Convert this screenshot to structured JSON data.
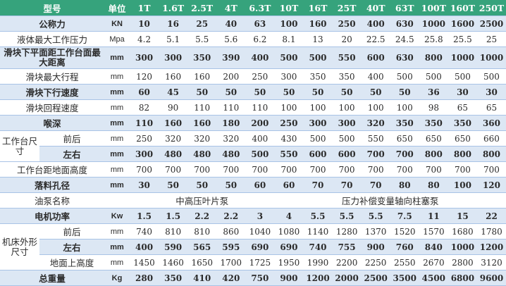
{
  "colors": {
    "header": "#36a37c",
    "row_alt": "#dce7f4",
    "border": "#a8c3e6"
  },
  "header": {
    "model": "型号",
    "unit": "单位",
    "models": [
      "1T",
      "1.6T",
      "2.5T",
      "4T",
      "6.3T",
      "10T",
      "16T",
      "25T",
      "40T",
      "63T",
      "100T",
      "160T",
      "250T"
    ]
  },
  "rows": [
    {
      "label": "公称力",
      "unit": "KN",
      "values": [
        "10",
        "16",
        "25",
        "40",
        "63",
        "100",
        "160",
        "250",
        "400",
        "630",
        "1000",
        "1600",
        "2500"
      ],
      "bg": "b",
      "bold": true
    },
    {
      "label": "液体最大工作压力",
      "unit": "Mpa",
      "values": [
        "4.2",
        "5.1",
        "5.5",
        "5.6",
        "6.2",
        "8.1",
        "13",
        "20",
        "22.5",
        "24.5",
        "25.8",
        "25.5",
        "25"
      ],
      "bg": "w"
    },
    {
      "label": "滑块下平面距工作台面最大距离",
      "unit": "mm",
      "values": [
        "300",
        "300",
        "350",
        "390",
        "400",
        "500",
        "500",
        "550",
        "600",
        "630",
        "800",
        "1000",
        "1000"
      ],
      "bg": "b",
      "bold": true,
      "tall": true
    },
    {
      "label": "滑块最大行程",
      "unit": "mm",
      "values": [
        "120",
        "160",
        "160",
        "200",
        "250",
        "300",
        "350",
        "350",
        "400",
        "500",
        "500",
        "500",
        "500"
      ],
      "bg": "w"
    },
    {
      "label": "滑块下行速度",
      "unit": "mm",
      "values": [
        "60",
        "45",
        "50",
        "50",
        "50",
        "50",
        "50",
        "50",
        "50",
        "50",
        "36",
        "30",
        "30"
      ],
      "bg": "b",
      "bold": true
    },
    {
      "label": "滑块回程速度",
      "unit": "mm",
      "values": [
        "82",
        "90",
        "110",
        "110",
        "110",
        "100",
        "100",
        "100",
        "100",
        "100",
        "98",
        "65",
        "65"
      ],
      "bg": "w"
    },
    {
      "label": "喉深",
      "unit": "mm",
      "values": [
        "110",
        "160",
        "160",
        "180",
        "200",
        "250",
        "300",
        "300",
        "320",
        "350",
        "350",
        "350",
        "360"
      ],
      "bg": "b",
      "bold": true
    },
    {
      "group": "工作台尺寸",
      "sub": "前后",
      "unit": "mm",
      "values": [
        "250",
        "320",
        "320",
        "320",
        "400",
        "430",
        "500",
        "500",
        "550",
        "650",
        "650",
        "650",
        "660"
      ],
      "bg": "w"
    },
    {
      "sub": "左右",
      "unit": "mm",
      "values": [
        "300",
        "480",
        "480",
        "480",
        "500",
        "550",
        "600",
        "600",
        "700",
        "700",
        "800",
        "800",
        "800"
      ],
      "bg": "b",
      "bold": true
    },
    {
      "label": "工作台距地面高度",
      "unit": "mm",
      "values": [
        "700",
        "700",
        "700",
        "700",
        "700",
        "700",
        "700",
        "700",
        "700",
        "700",
        "700",
        "700",
        "700"
      ],
      "bg": "w"
    },
    {
      "label": "落料孔径",
      "unit": "mm",
      "values": [
        "30",
        "50",
        "50",
        "50",
        "60",
        "60",
        "70",
        "70",
        "70",
        "80",
        "80",
        "100",
        "120"
      ],
      "bg": "b",
      "bold": true
    },
    {
      "label": "油泵名称",
      "unit": "",
      "spans": [
        {
          "text": "中高压叶片泵",
          "cols": 5
        },
        {
          "text": "压力补偿变量轴向柱塞泵",
          "cols": 8
        }
      ],
      "bg": "w"
    },
    {
      "label": "电机功率",
      "unit": "Kw",
      "values": [
        "1.5",
        "1.5",
        "2.2",
        "2.2",
        "3",
        "4",
        "5.5",
        "5.5",
        "5.5",
        "7.5",
        "11",
        "15",
        "22"
      ],
      "bg": "b",
      "bold": true
    },
    {
      "group": "机床外形尺寸",
      "sub": "前后",
      "unit": "mm",
      "values": [
        "740",
        "810",
        "810",
        "860",
        "1040",
        "1080",
        "1140",
        "1280",
        "1370",
        "1520",
        "1570",
        "1680",
        "1780"
      ],
      "bg": "w"
    },
    {
      "sub": "左右",
      "unit": "mm",
      "values": [
        "400",
        "590",
        "565",
        "595",
        "690",
        "690",
        "740",
        "755",
        "900",
        "760",
        "840",
        "1000",
        "1200"
      ],
      "bg": "b",
      "bold": true
    },
    {
      "sub": "地面上高度",
      "unit": "mm",
      "values": [
        "1450",
        "1460",
        "1650",
        "1700",
        "1725",
        "1950",
        "1990",
        "2200",
        "2250",
        "2550",
        "2670",
        "2800",
        "3120"
      ],
      "bg": "w"
    },
    {
      "label": "总重量",
      "unit": "Kg",
      "values": [
        "280",
        "350",
        "410",
        "420",
        "750",
        "900",
        "1200",
        "2000",
        "2500",
        "3500",
        "4500",
        "6800",
        "9600"
      ],
      "bg": "b",
      "bold": true
    }
  ]
}
